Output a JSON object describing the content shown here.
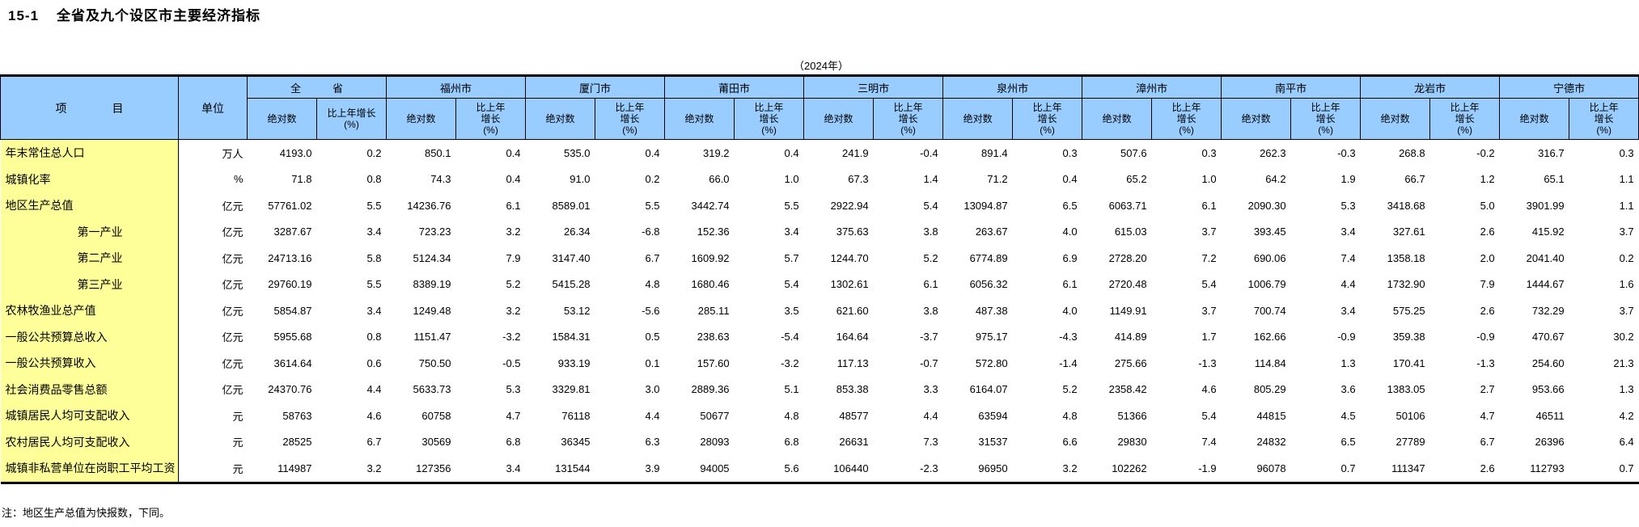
{
  "page": {
    "title_no": "15-1",
    "title": "全省及九个设区市主要经济指标",
    "year_caption": "（2024年）",
    "note": "注：地区生产总值为快报数，下同。"
  },
  "table": {
    "header": {
      "item": "项　　　　目",
      "unit": "单位",
      "abs": "绝对数",
      "growth_province_lines": [
        "比上年增长",
        "(%)"
      ],
      "growth_city_lines": [
        "比上年",
        "增长",
        "(%)"
      ]
    },
    "regions": [
      "全　　　省",
      "福州市",
      "厦门市",
      "莆田市",
      "三明市",
      "泉州市",
      "漳州市",
      "南平市",
      "龙岩市",
      "宁德市"
    ],
    "rows": [
      {
        "item": "年末常住总人口",
        "indent": false,
        "unit": "万人",
        "values": [
          [
            "4193.0",
            "0.2"
          ],
          [
            "850.1",
            "0.4"
          ],
          [
            "535.0",
            "0.4"
          ],
          [
            "319.2",
            "0.4"
          ],
          [
            "241.9",
            "-0.4"
          ],
          [
            "891.4",
            "0.3"
          ],
          [
            "507.6",
            "0.3"
          ],
          [
            "262.3",
            "-0.3"
          ],
          [
            "268.8",
            "-0.2"
          ],
          [
            "316.7",
            "0.3"
          ]
        ]
      },
      {
        "item": "城镇化率",
        "indent": false,
        "unit": "%",
        "values": [
          [
            "71.8",
            "0.8"
          ],
          [
            "74.3",
            "0.4"
          ],
          [
            "91.0",
            "0.2"
          ],
          [
            "66.0",
            "1.0"
          ],
          [
            "67.3",
            "1.4"
          ],
          [
            "71.2",
            "0.4"
          ],
          [
            "65.2",
            "1.0"
          ],
          [
            "64.2",
            "1.9"
          ],
          [
            "66.7",
            "1.2"
          ],
          [
            "65.1",
            "1.1"
          ]
        ]
      },
      {
        "item": "地区生产总值",
        "indent": false,
        "unit": "亿元",
        "values": [
          [
            "57761.02",
            "5.5"
          ],
          [
            "14236.76",
            "6.1"
          ],
          [
            "8589.01",
            "5.5"
          ],
          [
            "3442.74",
            "5.5"
          ],
          [
            "2922.94",
            "5.4"
          ],
          [
            "13094.87",
            "6.5"
          ],
          [
            "6063.71",
            "6.1"
          ],
          [
            "2090.30",
            "5.3"
          ],
          [
            "3418.68",
            "5.0"
          ],
          [
            "3901.99",
            "1.1"
          ]
        ]
      },
      {
        "item": "第一产业",
        "indent": true,
        "unit": "亿元",
        "values": [
          [
            "3287.67",
            "3.4"
          ],
          [
            "723.23",
            "3.2"
          ],
          [
            "26.34",
            "-6.8"
          ],
          [
            "152.36",
            "3.4"
          ],
          [
            "375.63",
            "3.8"
          ],
          [
            "263.67",
            "4.0"
          ],
          [
            "615.03",
            "3.7"
          ],
          [
            "393.45",
            "3.4"
          ],
          [
            "327.61",
            "2.6"
          ],
          [
            "415.92",
            "3.7"
          ]
        ]
      },
      {
        "item": "第二产业",
        "indent": true,
        "unit": "亿元",
        "values": [
          [
            "24713.16",
            "5.8"
          ],
          [
            "5124.34",
            "7.9"
          ],
          [
            "3147.40",
            "6.7"
          ],
          [
            "1609.92",
            "5.7"
          ],
          [
            "1244.70",
            "5.2"
          ],
          [
            "6774.89",
            "6.9"
          ],
          [
            "2728.20",
            "7.2"
          ],
          [
            "690.06",
            "7.4"
          ],
          [
            "1358.18",
            "2.0"
          ],
          [
            "2041.40",
            "0.2"
          ]
        ]
      },
      {
        "item": "第三产业",
        "indent": true,
        "unit": "亿元",
        "values": [
          [
            "29760.19",
            "5.5"
          ],
          [
            "8389.19",
            "5.2"
          ],
          [
            "5415.28",
            "4.8"
          ],
          [
            "1680.46",
            "5.4"
          ],
          [
            "1302.61",
            "6.1"
          ],
          [
            "6056.32",
            "6.1"
          ],
          [
            "2720.48",
            "5.4"
          ],
          [
            "1006.79",
            "4.4"
          ],
          [
            "1732.90",
            "7.9"
          ],
          [
            "1444.67",
            "1.6"
          ]
        ]
      },
      {
        "item": "农林牧渔业总产值",
        "indent": false,
        "unit": "亿元",
        "values": [
          [
            "5854.87",
            "3.4"
          ],
          [
            "1249.48",
            "3.2"
          ],
          [
            "53.12",
            "-5.6"
          ],
          [
            "285.11",
            "3.5"
          ],
          [
            "621.60",
            "3.8"
          ],
          [
            "487.38",
            "4.0"
          ],
          [
            "1149.91",
            "3.7"
          ],
          [
            "700.74",
            "3.4"
          ],
          [
            "575.25",
            "2.6"
          ],
          [
            "732.29",
            "3.7"
          ]
        ]
      },
      {
        "item": "一般公共预算总收入",
        "indent": false,
        "unit": "亿元",
        "values": [
          [
            "5955.68",
            "0.8"
          ],
          [
            "1151.47",
            "-3.2"
          ],
          [
            "1584.31",
            "0.5"
          ],
          [
            "238.63",
            "-5.4"
          ],
          [
            "164.64",
            "-3.7"
          ],
          [
            "975.17",
            "-4.3"
          ],
          [
            "414.89",
            "1.7"
          ],
          [
            "162.66",
            "-0.9"
          ],
          [
            "359.38",
            "-0.9"
          ],
          [
            "470.67",
            "30.2"
          ]
        ]
      },
      {
        "item": "一般公共预算收入",
        "indent": false,
        "unit": "亿元",
        "values": [
          [
            "3614.64",
            "0.6"
          ],
          [
            "750.50",
            "-0.5"
          ],
          [
            "933.19",
            "0.1"
          ],
          [
            "157.60",
            "-3.2"
          ],
          [
            "117.13",
            "-0.7"
          ],
          [
            "572.80",
            "-1.4"
          ],
          [
            "275.66",
            "-1.3"
          ],
          [
            "114.84",
            "1.3"
          ],
          [
            "170.41",
            "-1.3"
          ],
          [
            "254.60",
            "21.3"
          ]
        ]
      },
      {
        "item": "社会消费品零售总额",
        "indent": false,
        "unit": "亿元",
        "values": [
          [
            "24370.76",
            "4.4"
          ],
          [
            "5633.73",
            "5.3"
          ],
          [
            "3329.81",
            "3.0"
          ],
          [
            "2889.36",
            "5.1"
          ],
          [
            "853.38",
            "3.3"
          ],
          [
            "6164.07",
            "5.2"
          ],
          [
            "2358.42",
            "4.6"
          ],
          [
            "805.29",
            "3.6"
          ],
          [
            "1383.05",
            "2.7"
          ],
          [
            "953.66",
            "1.3"
          ]
        ]
      },
      {
        "item": "城镇居民人均可支配收入",
        "indent": false,
        "unit": "元",
        "values": [
          [
            "58763",
            "4.6"
          ],
          [
            "60758",
            "4.7"
          ],
          [
            "76118",
            "4.4"
          ],
          [
            "50677",
            "4.8"
          ],
          [
            "48577",
            "4.4"
          ],
          [
            "63594",
            "4.8"
          ],
          [
            "51366",
            "5.4"
          ],
          [
            "44815",
            "4.5"
          ],
          [
            "50106",
            "4.7"
          ],
          [
            "46511",
            "4.2"
          ]
        ]
      },
      {
        "item": "农村居民人均可支配收入",
        "indent": false,
        "unit": "元",
        "values": [
          [
            "28525",
            "6.7"
          ],
          [
            "30569",
            "6.8"
          ],
          [
            "36345",
            "6.3"
          ],
          [
            "28093",
            "6.8"
          ],
          [
            "26631",
            "7.3"
          ],
          [
            "31537",
            "6.6"
          ],
          [
            "29830",
            "7.4"
          ],
          [
            "24832",
            "6.5"
          ],
          [
            "27789",
            "6.7"
          ],
          [
            "26396",
            "6.4"
          ]
        ]
      },
      {
        "item": "城镇非私营单位在岗职工平均工资",
        "indent": false,
        "unit": "元",
        "values": [
          [
            "114987",
            "3.2"
          ],
          [
            "127356",
            "3.4"
          ],
          [
            "131544",
            "3.9"
          ],
          [
            "94005",
            "5.6"
          ],
          [
            "106440",
            "-2.3"
          ],
          [
            "96950",
            "3.2"
          ],
          [
            "102262",
            "-1.9"
          ],
          [
            "96078",
            "0.7"
          ],
          [
            "111347",
            "2.6"
          ],
          [
            "112793",
            "0.7"
          ]
        ]
      }
    ],
    "colors": {
      "header_bg": "#99CCFF",
      "item_bg": "#FFFF99",
      "border": "#000000"
    }
  }
}
